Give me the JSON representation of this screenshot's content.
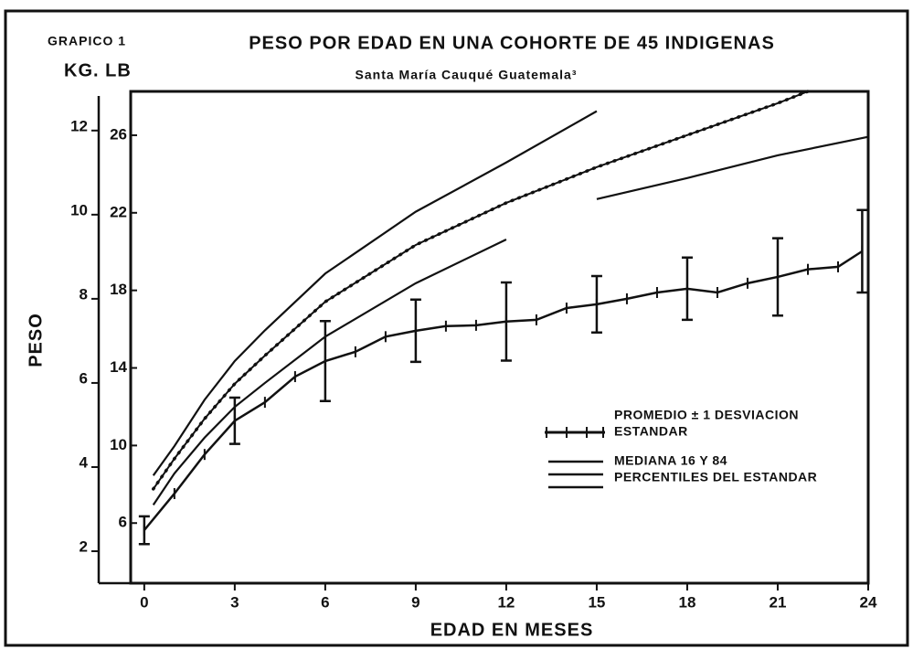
{
  "chart_data": {
    "type": "line",
    "label": "GRAPICO 1",
    "title": "PESO POR EDAD EN UNA COHORTE DE 45 INDIGENAS",
    "subtitle": "Santa María Cauqué Guatemala³",
    "units_label": "KG. LB",
    "y_label": "PESO",
    "x_label": "EDAD EN MESES",
    "xlim": [
      -0.45,
      24
    ],
    "xticks": [
      0,
      3,
      6,
      9,
      12,
      15,
      18,
      21,
      24
    ],
    "ylim": [
      1.24,
      12.93
    ],
    "yticks": [
      2,
      4,
      6,
      8,
      10,
      12
    ],
    "y2lim": [
      2.9,
      28.26
    ],
    "y2ticks": [
      6,
      10,
      14,
      18,
      22,
      26
    ],
    "color": "#111111",
    "series": [
      {
        "name": [
          "PROMEDIO ± 1 DESVIACION",
          "ESTANDAR"
        ],
        "style": "mean",
        "x": [
          0,
          1,
          2,
          3,
          4,
          5,
          6,
          7,
          8,
          9,
          10,
          11,
          12,
          13,
          14,
          15,
          16,
          17,
          18,
          19,
          20,
          21,
          22,
          23,
          23.8
        ],
        "values": [
          2.5,
          3.37,
          4.3,
          5.1,
          5.54,
          6.15,
          6.52,
          6.74,
          7.1,
          7.24,
          7.35,
          7.37,
          7.46,
          7.5,
          7.78,
          7.87,
          8.0,
          8.15,
          8.24,
          8.15,
          8.37,
          8.52,
          8.7,
          8.76,
          9.13
        ],
        "error": [
          0.33,
          null,
          null,
          0.55,
          null,
          null,
          0.95,
          null,
          null,
          0.74,
          null,
          null,
          0.93,
          null,
          null,
          0.67,
          null,
          null,
          0.74,
          null,
          null,
          0.92,
          null,
          null,
          0.98
        ]
      },
      {
        "name": [
          "MEDIANA 16 Y 84",
          "PERCENTILES DEL ESTANDAR"
        ],
        "style": "standard",
        "curves": [
          {
            "x": [
              0.3,
              1,
              2,
              3,
              4,
              6,
              9,
              12,
              15
            ],
            "values": [
              3.8,
              4.5,
              5.6,
              6.52,
              7.25,
              8.6,
              10.07,
              11.24,
              12.46
            ]
          },
          {
            "x": [
              0.3,
              1,
              2,
              3,
              4,
              6,
              9,
              12,
              15,
              18,
              21,
              22
            ],
            "values": [
              3.48,
              4.2,
              5.15,
              5.98,
              6.65,
              7.93,
              9.28,
              10.28,
              11.13,
              11.89,
              12.65,
              12.93
            ]
          },
          {
            "x": [
              0.3,
              1,
              2,
              3,
              4,
              6,
              9,
              12,
              13,
              15,
              18,
              21,
              24
            ],
            "values": [
              3.1,
              3.85,
              4.7,
              5.43,
              6.0,
              7.1,
              8.37,
              9.41,
              null,
              10.37,
              10.87,
              11.41,
              11.85
            ]
          }
        ]
      }
    ]
  }
}
